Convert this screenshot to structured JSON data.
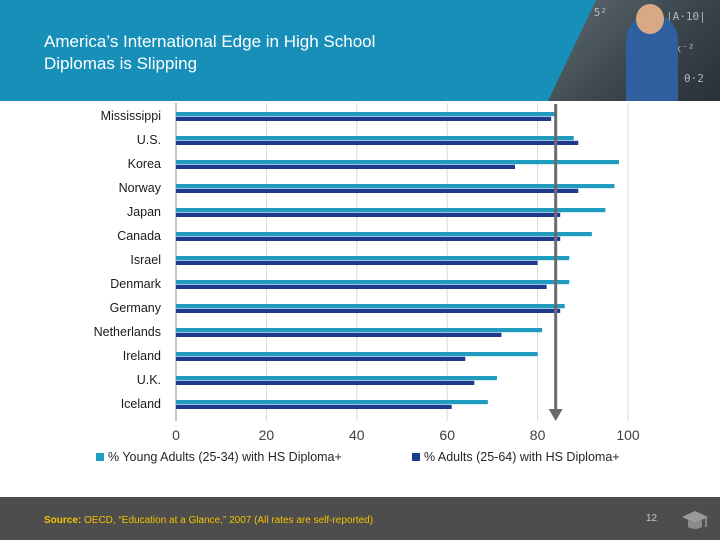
{
  "slide": {
    "title_line1": "America’s International Edge in High School",
    "title_line2": "Diplomas is Slipping",
    "source_label": "Source:",
    "source_text": " OECD, “Education at a Glance,” 2007 (All rates are self-reported)",
    "page_number": "12"
  },
  "colors": {
    "young": "#1f9cc0",
    "adults": "#1e3a8a",
    "header": "#178fb9",
    "footer": "#4d4d4d",
    "arrow": "#6b6b6b"
  },
  "chart_data": {
    "type": "bar",
    "orientation": "horizontal",
    "categories": [
      "Mississippi",
      "U.S.",
      "Korea",
      "Norway",
      "Japan",
      "Canada",
      "Israel",
      "Denmark",
      "Germany",
      "Netherlands",
      "Ireland",
      "U.K.",
      "Iceland"
    ],
    "series": [
      {
        "name": "% Young Adults (25-34) with HS Diploma+",
        "values": [
          84,
          88,
          98,
          97,
          95,
          92,
          87,
          87,
          86,
          81,
          80,
          71,
          69
        ]
      },
      {
        "name": "% Adults (25-64) with HS Diploma+",
        "values": [
          83,
          89,
          75,
          89,
          85,
          85,
          80,
          82,
          85,
          72,
          64,
          66,
          61
        ]
      }
    ],
    "xlim": [
      0,
      100
    ],
    "xticks": [
      "0",
      "20",
      "40",
      "60",
      "80",
      "100"
    ],
    "vertical_grid": true,
    "legend_position": "bottom",
    "arrow_value": 84
  }
}
